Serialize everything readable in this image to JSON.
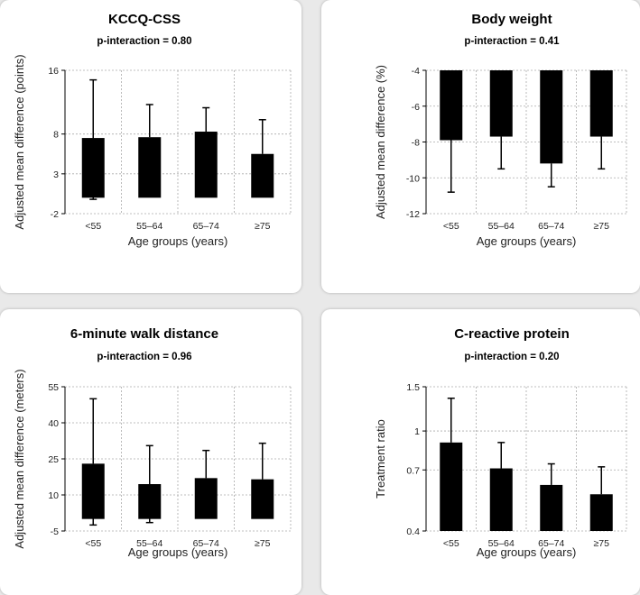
{
  "chart_data": [
    {
      "type": "bar",
      "title": "KCCQ-CSS",
      "subtitle": "p-interaction = 0.80",
      "xlabel": "Age groups (years)",
      "ylabel": "Adjusted mean difference (points)",
      "categories": [
        "<55",
        "55–64",
        "65–74",
        "≥75"
      ],
      "values": [
        7.5,
        7.6,
        8.3,
        5.5
      ],
      "error_lower": [
        -0.2,
        null,
        null,
        null
      ],
      "error_upper": [
        14.8,
        11.7,
        11.3,
        9.8
      ],
      "yticks": [
        -2,
        3,
        8,
        16
      ],
      "yticklabels": [
        "-2",
        "3",
        "8",
        "16"
      ],
      "ylim": [
        -2,
        16
      ],
      "grid": true
    },
    {
      "type": "bar",
      "title": "Body weight",
      "subtitle": "p-interaction = 0.41",
      "xlabel": "Age groups (years)",
      "ylabel": "Adjusted mean difference (%)",
      "categories": [
        "<55",
        "55–64",
        "65–74",
        "≥75"
      ],
      "values": [
        -7.9,
        -7.7,
        -9.2,
        -7.7
      ],
      "error_lower": [
        -10.8,
        -9.5,
        -10.5,
        -9.5
      ],
      "error_upper": [
        null,
        null,
        null,
        null
      ],
      "yticks": [
        -4,
        -6,
        -8,
        -10,
        -12
      ],
      "yticklabels": [
        "-4",
        "-6",
        "-8",
        "-10",
        "-12"
      ],
      "ylim": [
        -12,
        -4
      ],
      "grid": true
    },
    {
      "type": "bar",
      "title": "6-minute walk distance",
      "subtitle": "p-interaction = 0.96",
      "xlabel": "Age groups (years)",
      "ylabel": "Adjusted mean difference (meters)",
      "categories": [
        "<55",
        "55–64",
        "65–74",
        "≥75"
      ],
      "values": [
        23,
        14.5,
        17,
        16.5
      ],
      "error_lower": [
        -2.5,
        -1.5,
        null,
        null
      ],
      "error_upper": [
        50,
        30.5,
        28.5,
        31.5
      ],
      "yticks": [
        -5,
        10,
        25,
        40,
        55
      ],
      "yticklabels": [
        "-5",
        "10",
        "25",
        "40",
        "55"
      ],
      "ylim": [
        -5,
        55
      ],
      "grid": true
    },
    {
      "type": "bar",
      "title": "C-reactive protein",
      "subtitle": "p-interaction = 0.20",
      "xlabel": "Age groups (years)",
      "ylabel": "Treatment ratio",
      "categories": [
        "<55",
        "55–64",
        "65–74",
        "≥75"
      ],
      "values": [
        0.9,
        0.71,
        0.61,
        0.56
      ],
      "error_lower": [
        null,
        null,
        null,
        null
      ],
      "error_upper": [
        1.35,
        0.9,
        0.74,
        0.72
      ],
      "yticks": [
        0.4,
        0.7,
        1,
        1.5
      ],
      "yticklabels": [
        "0.4",
        "0.7",
        "1",
        "1.5"
      ],
      "ylim": [
        0.4,
        1.5
      ],
      "yscale": "log",
      "grid": true
    }
  ]
}
